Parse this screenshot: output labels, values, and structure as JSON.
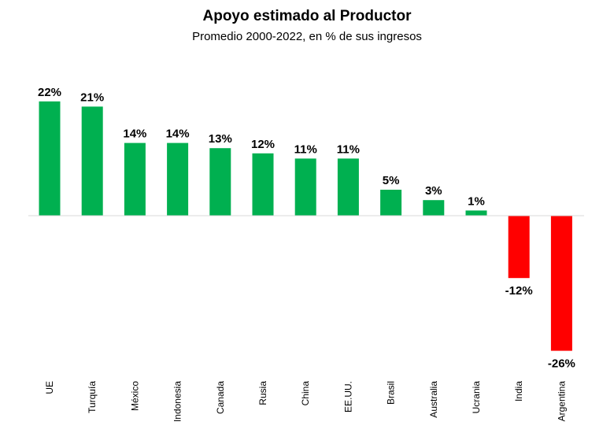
{
  "chart_data": {
    "type": "bar",
    "title": "Apoyo estimado al Productor",
    "subtitle": "Promedio 2000-2022, en % de sus ingresos",
    "categories": [
      "UE",
      "Turquía",
      "México",
      "Indonesia",
      "Canada",
      "Rusia",
      "China",
      "EE.UU.",
      "Brasil",
      "Australia",
      "Ucrania",
      "India",
      "Argentina"
    ],
    "values": [
      22,
      21,
      14,
      14,
      13,
      12,
      11,
      11,
      5,
      3,
      1,
      -12,
      -26
    ],
    "value_labels": [
      "22%",
      "21%",
      "14%",
      "14%",
      "13%",
      "12%",
      "11%",
      "11%",
      "5%",
      "3%",
      "1%",
      "-12%",
      "-26%"
    ],
    "xlabel": "",
    "ylabel": "",
    "ylim": [
      -26,
      22
    ],
    "grid": false,
    "legend": "none",
    "colors": {
      "positive": "#00b050",
      "negative": "#ff0000",
      "axis": "#d9d9d9"
    }
  }
}
